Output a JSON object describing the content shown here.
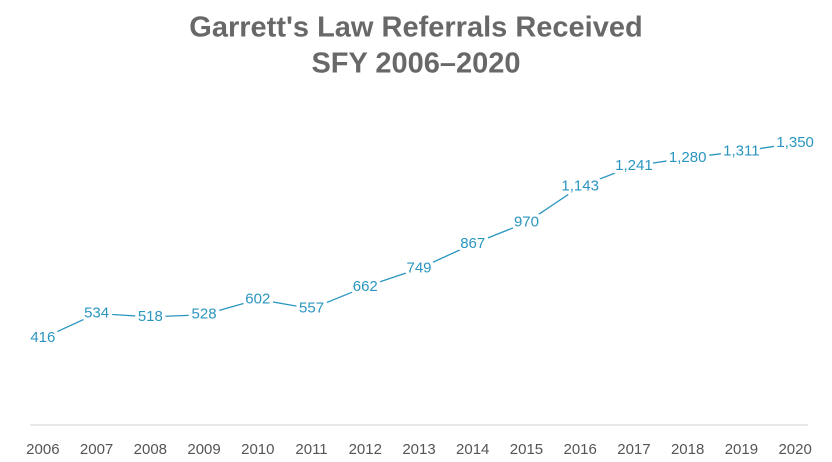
{
  "chart_data": {
    "type": "line",
    "title": "Garrett's Law Referrals Received",
    "subtitle": "SFY 2006–2020",
    "categories": [
      "2006",
      "2007",
      "2008",
      "2009",
      "2010",
      "2011",
      "2012",
      "2013",
      "2014",
      "2015",
      "2016",
      "2017",
      "2018",
      "2019",
      "2020"
    ],
    "values": [
      416,
      534,
      518,
      528,
      602,
      557,
      662,
      749,
      867,
      970,
      1143,
      1241,
      1280,
      1311,
      1350
    ],
    "value_labels": [
      "416",
      "534",
      "518",
      "528",
      "602",
      "557",
      "662",
      "749",
      "867",
      "970",
      "1,143",
      "1,241",
      "1,280",
      "1,311",
      "1,350"
    ],
    "color": "#2a96c0",
    "ylim": [
      0,
      1600
    ]
  }
}
